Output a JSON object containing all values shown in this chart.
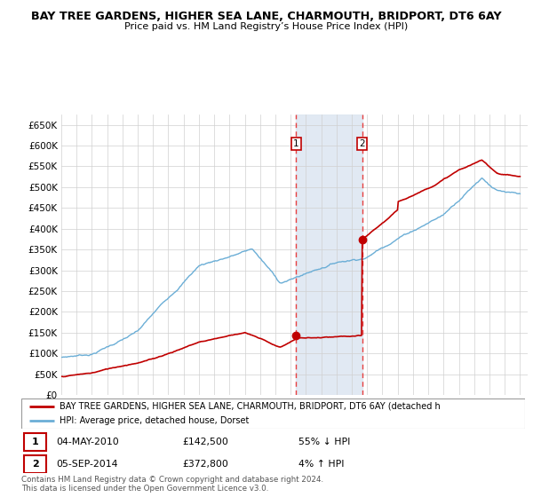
{
  "title": "BAY TREE GARDENS, HIGHER SEA LANE, CHARMOUTH, BRIDPORT, DT6 6AY",
  "subtitle": "Price paid vs. HM Land Registry’s House Price Index (HPI)",
  "hpi_label": "HPI: Average price, detached house, Dorset",
  "property_label": "BAY TREE GARDENS, HIGHER SEA LANE, CHARMOUTH, BRIDPORT, DT6 6AY (detached h",
  "transaction1_date": "04-MAY-2010",
  "transaction1_price": 142500,
  "transaction1_hpi": "55% ↓ HPI",
  "transaction2_date": "05-SEP-2014",
  "transaction2_price": 372800,
  "transaction2_hpi": "4% ↑ HPI",
  "footer": "Contains HM Land Registry data © Crown copyright and database right 2024.\nThis data is licensed under the Open Government Licence v3.0.",
  "hpi_color": "#6baed6",
  "property_color": "#c00000",
  "vline_color": "#e84040",
  "shaded_color": "#dce6f1",
  "ylim": [
    0,
    675000
  ],
  "yticks": [
    0,
    50000,
    100000,
    150000,
    200000,
    250000,
    300000,
    350000,
    400000,
    450000,
    500000,
    550000,
    600000,
    650000
  ],
  "transaction1_year": 2010.35,
  "transaction2_year": 2014.68
}
